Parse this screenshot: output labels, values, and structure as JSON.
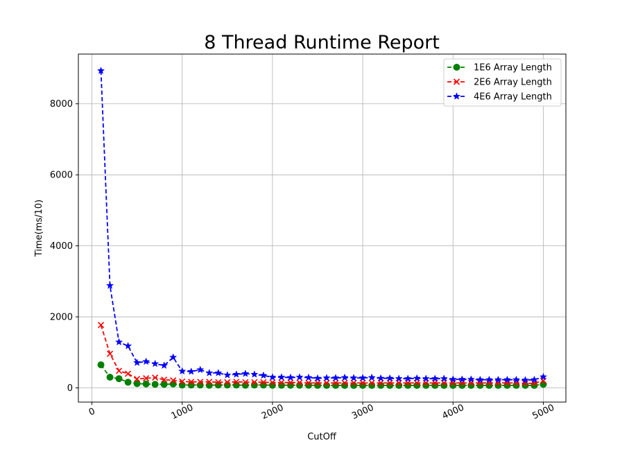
{
  "chart_data": {
    "type": "line",
    "title": "8 Thread Runtime Report",
    "xlabel": "CutOff",
    "ylabel": "Time(ms/10)",
    "xlim": [
      -150,
      5250
    ],
    "ylim": [
      -400,
      9400
    ],
    "xticks": [
      0,
      1000,
      2000,
      3000,
      4000,
      5000
    ],
    "xtick_labels": [
      "0",
      "1000",
      "2000",
      "3000",
      "4000",
      "5000"
    ],
    "xtick_rotation": -25,
    "yticks": [
      0,
      2000,
      4000,
      6000,
      8000
    ],
    "ytick_labels": [
      "0",
      "2000",
      "4000",
      "6000",
      "8000"
    ],
    "grid": true,
    "legend_position": "top-right",
    "x": [
      100,
      200,
      300,
      400,
      500,
      600,
      700,
      800,
      900,
      1000,
      1100,
      1200,
      1300,
      1400,
      1500,
      1600,
      1700,
      1800,
      1900,
      2000,
      2100,
      2200,
      2300,
      2400,
      2500,
      2600,
      2700,
      2800,
      2900,
      3000,
      3100,
      3200,
      3300,
      3400,
      3500,
      3600,
      3700,
      3800,
      3900,
      4000,
      4100,
      4200,
      4300,
      4400,
      4500,
      4600,
      4700,
      4800,
      4900,
      5000
    ],
    "series": [
      {
        "name": "1E6 Array Length",
        "color": "#008000",
        "marker": "circle",
        "values": [
          650,
          300,
          260,
          160,
          120,
          110,
          100,
          100,
          110,
          80,
          80,
          80,
          75,
          80,
          80,
          80,
          75,
          80,
          80,
          75,
          75,
          75,
          75,
          75,
          70,
          70,
          70,
          70,
          70,
          70,
          70,
          70,
          70,
          70,
          70,
          70,
          70,
          70,
          70,
          70,
          70,
          70,
          70,
          70,
          70,
          70,
          70,
          70,
          70,
          100
        ]
      },
      {
        "name": "2E6 Array Length",
        "color": "#ff0000",
        "marker": "x",
        "values": [
          1770,
          960,
          480,
          400,
          250,
          270,
          290,
          230,
          210,
          180,
          170,
          170,
          170,
          160,
          160,
          170,
          160,
          160,
          160,
          150,
          150,
          150,
          150,
          140,
          140,
          140,
          140,
          140,
          140,
          140,
          140,
          140,
          140,
          140,
          140,
          140,
          140,
          140,
          140,
          140,
          140,
          140,
          140,
          140,
          140,
          140,
          140,
          130,
          130,
          200
        ]
      },
      {
        "name": "4E6 Array Length",
        "color": "#0000ff",
        "marker": "star",
        "values": [
          8930,
          2880,
          1290,
          1180,
          710,
          740,
          680,
          630,
          860,
          470,
          460,
          510,
          420,
          420,
          360,
          380,
          400,
          380,
          350,
          300,
          300,
          290,
          300,
          290,
          270,
          280,
          280,
          290,
          280,
          280,
          290,
          270,
          270,
          260,
          260,
          270,
          260,
          260,
          260,
          240,
          240,
          240,
          230,
          230,
          230,
          230,
          230,
          220,
          230,
          310
        ]
      }
    ]
  }
}
